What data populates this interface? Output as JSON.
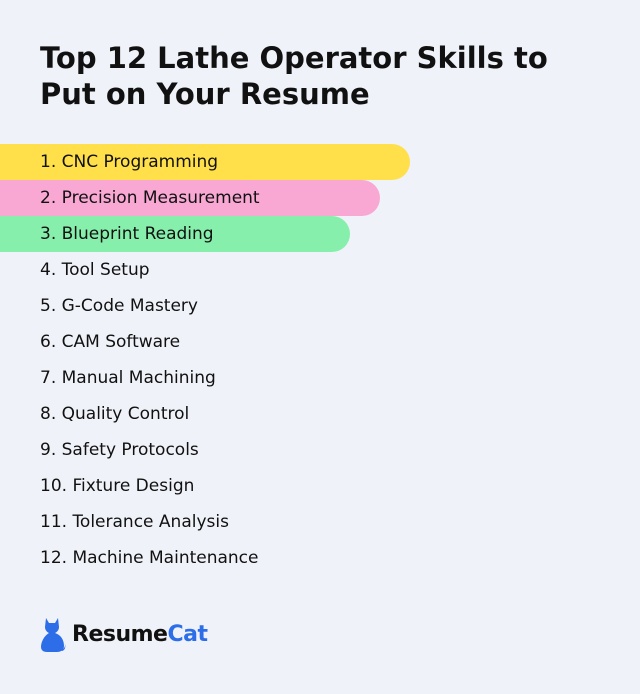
{
  "title": "Top 12 Lathe Operator Skills to Put on Your Resume",
  "skills": [
    {
      "label": "1. CNC Programming",
      "highlight": "#ffe04b"
    },
    {
      "label": "2. Precision Measurement",
      "highlight": "#f9a8d4"
    },
    {
      "label": "3. Blueprint Reading",
      "highlight": "#86efac"
    },
    {
      "label": "4. Tool Setup"
    },
    {
      "label": "5. G-Code Mastery"
    },
    {
      "label": "6. CAM Software"
    },
    {
      "label": "7. Manual Machining"
    },
    {
      "label": "8. Quality Control"
    },
    {
      "label": "9. Safety Protocols"
    },
    {
      "label": "10. Fixture Design"
    },
    {
      "label": "11. Tolerance Analysis"
    },
    {
      "label": "12. Machine Maintenance"
    }
  ],
  "logo": {
    "icon": "cat-icon",
    "text_main": "Resume",
    "text_accent": "Cat",
    "accent_color": "#2d6ee8"
  }
}
